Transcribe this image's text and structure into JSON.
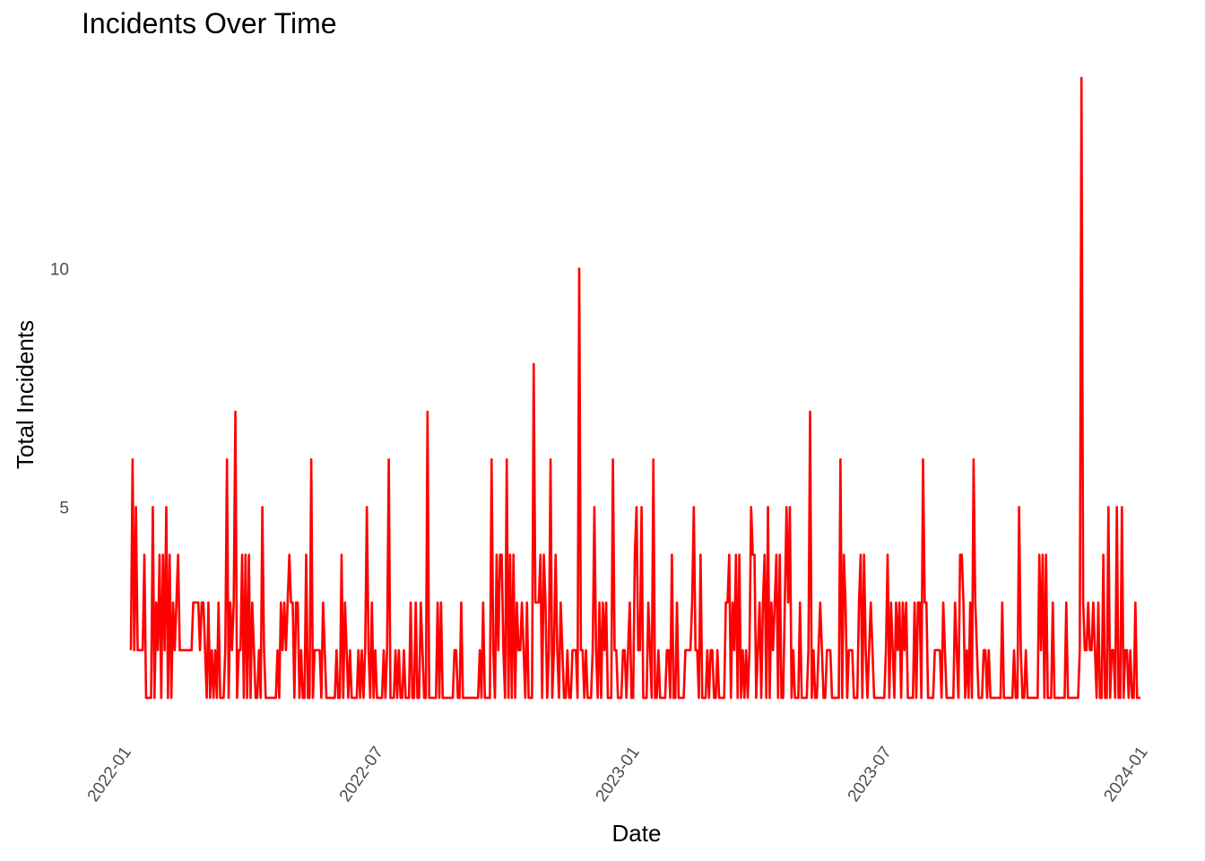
{
  "chart_data": {
    "type": "line",
    "title": "Incidents Over Time",
    "xlabel": "Date",
    "ylabel": "Total Incidents",
    "x_start": "2022-01-05",
    "x_end": "2023-12-31",
    "x_tick_labels": [
      "2022-01",
      "2022-07",
      "2023-01",
      "2023-07",
      "2024-01"
    ],
    "x_tick_dates": [
      "2022-01-01",
      "2022-07-01",
      "2023-01-01",
      "2023-07-01",
      "2024-01-01"
    ],
    "y_tick_labels": [
      "5",
      "10"
    ],
    "y_ticks": [
      5,
      10
    ],
    "ylim": [
      0.4,
      14.6
    ],
    "grid": false,
    "line_color": "#ff0000",
    "series": [
      {
        "values": [
          2,
          6,
          2,
          5,
          2,
          2,
          2,
          2,
          4,
          1,
          1,
          1,
          1,
          5,
          1,
          3,
          2,
          4,
          1,
          4,
          2,
          5,
          1,
          4,
          1,
          3,
          2,
          3,
          4,
          2,
          2,
          2,
          2,
          2,
          2,
          2,
          2,
          3,
          3,
          3,
          3,
          2,
          3,
          3,
          2,
          1,
          3,
          1,
          2,
          1,
          2,
          1,
          3,
          1,
          1,
          1,
          2,
          6,
          1,
          3,
          2,
          3,
          7,
          1,
          2,
          2,
          4,
          1,
          4,
          1,
          4,
          1,
          3,
          2,
          1,
          1,
          2,
          1,
          5,
          2,
          1,
          1,
          1,
          1,
          1,
          1,
          1,
          2,
          1,
          3,
          2,
          3,
          2,
          3,
          4,
          3,
          3,
          1,
          3,
          3,
          1,
          2,
          1,
          1,
          4,
          1,
          1,
          6,
          1,
          2,
          2,
          2,
          2,
          1,
          3,
          2,
          1,
          1,
          1,
          1,
          1,
          1,
          2,
          1,
          1,
          4,
          1,
          3,
          2,
          1,
          2,
          1,
          1,
          1,
          1,
          2,
          1,
          2,
          1,
          2,
          5,
          2,
          1,
          3,
          1,
          2,
          1,
          1,
          1,
          1,
          2,
          1,
          2,
          6,
          1,
          1,
          1,
          2,
          1,
          2,
          1,
          1,
          2,
          1,
          1,
          1,
          3,
          1,
          1,
          3,
          1,
          1,
          3,
          2,
          1,
          1,
          7,
          1,
          1,
          1,
          1,
          1,
          3,
          1,
          3,
          1,
          1,
          1,
          1,
          1,
          1,
          1,
          2,
          2,
          1,
          1,
          3,
          1,
          1,
          1,
          1,
          1,
          1,
          1,
          1,
          1,
          1,
          2,
          1,
          3,
          1,
          1,
          1,
          1,
          6,
          2,
          1,
          4,
          2,
          4,
          4,
          2,
          1,
          6,
          1,
          4,
          1,
          4,
          1,
          3,
          2,
          2,
          3,
          2,
          1,
          3,
          1,
          1,
          1,
          8,
          3,
          3,
          3,
          4,
          1,
          4,
          3,
          1,
          2,
          6,
          1,
          2,
          4,
          2,
          1,
          3,
          2,
          1,
          1,
          2,
          1,
          1,
          2,
          2,
          2,
          1,
          10,
          2,
          2,
          1,
          2,
          1,
          1,
          1,
          2,
          5,
          2,
          1,
          3,
          1,
          3,
          2,
          3,
          1,
          1,
          1,
          6,
          2,
          2,
          1,
          1,
          1,
          2,
          2,
          1,
          2,
          3,
          1,
          1,
          4,
          5,
          2,
          2,
          5,
          1,
          1,
          1,
          3,
          2,
          1,
          6,
          1,
          1,
          2,
          1,
          1,
          1,
          1,
          2,
          2,
          1,
          4,
          1,
          1,
          3,
          1,
          1,
          1,
          1,
          2,
          2,
          2,
          2,
          3,
          5,
          2,
          2,
          1,
          4,
          1,
          1,
          1,
          2,
          1,
          2,
          2,
          1,
          1,
          2,
          1,
          1,
          1,
          1,
          3,
          3,
          4,
          1,
          3,
          2,
          4,
          1,
          4,
          1,
          2,
          1,
          2,
          1,
          2,
          5,
          4,
          4,
          1,
          2,
          3,
          1,
          3,
          4,
          1,
          5,
          1,
          3,
          2,
          3,
          4,
          1,
          4,
          1,
          1,
          3,
          5,
          3,
          5,
          1,
          2,
          1,
          1,
          1,
          3,
          1,
          1,
          1,
          1,
          2,
          7,
          1,
          2,
          1,
          1,
          2,
          3,
          2,
          1,
          1,
          2,
          2,
          2,
          1,
          1,
          1,
          1,
          1,
          6,
          1,
          4,
          3,
          1,
          2,
          2,
          2,
          1,
          1,
          1,
          3,
          4,
          1,
          4,
          2,
          1,
          2,
          3,
          2,
          1,
          1,
          1,
          1,
          1,
          1,
          1,
          2,
          4,
          1,
          3,
          2,
          1,
          3,
          2,
          3,
          1,
          3,
          2,
          3,
          1,
          1,
          1,
          1,
          3,
          1,
          3,
          3,
          1,
          6,
          3,
          3,
          1,
          1,
          1,
          1,
          2,
          2,
          2,
          2,
          1,
          3,
          2,
          1,
          1,
          1,
          1,
          1,
          3,
          2,
          1,
          4,
          4,
          3,
          1,
          2,
          1,
          3,
          1,
          6,
          3,
          2,
          1,
          1,
          1,
          2,
          2,
          1,
          2,
          1,
          1,
          1,
          1,
          1,
          1,
          1,
          3,
          1,
          1,
          1,
          1,
          1,
          1,
          2,
          1,
          1,
          5,
          2,
          1,
          1,
          2,
          1,
          1,
          1,
          1,
          1,
          1,
          1,
          4,
          2,
          4,
          1,
          4,
          1,
          1,
          1,
          3,
          1,
          1,
          1,
          1,
          1,
          1,
          1,
          3,
          1,
          1,
          1,
          1,
          1,
          1,
          1,
          2,
          14,
          3,
          2,
          2,
          3,
          2,
          2,
          3,
          2,
          1,
          3,
          1,
          1,
          4,
          1,
          1,
          5,
          1,
          2,
          2,
          1,
          5,
          1,
          1,
          5,
          1,
          2,
          2,
          1,
          2,
          1,
          1,
          3,
          1,
          1,
          1
        ]
      }
    ]
  }
}
